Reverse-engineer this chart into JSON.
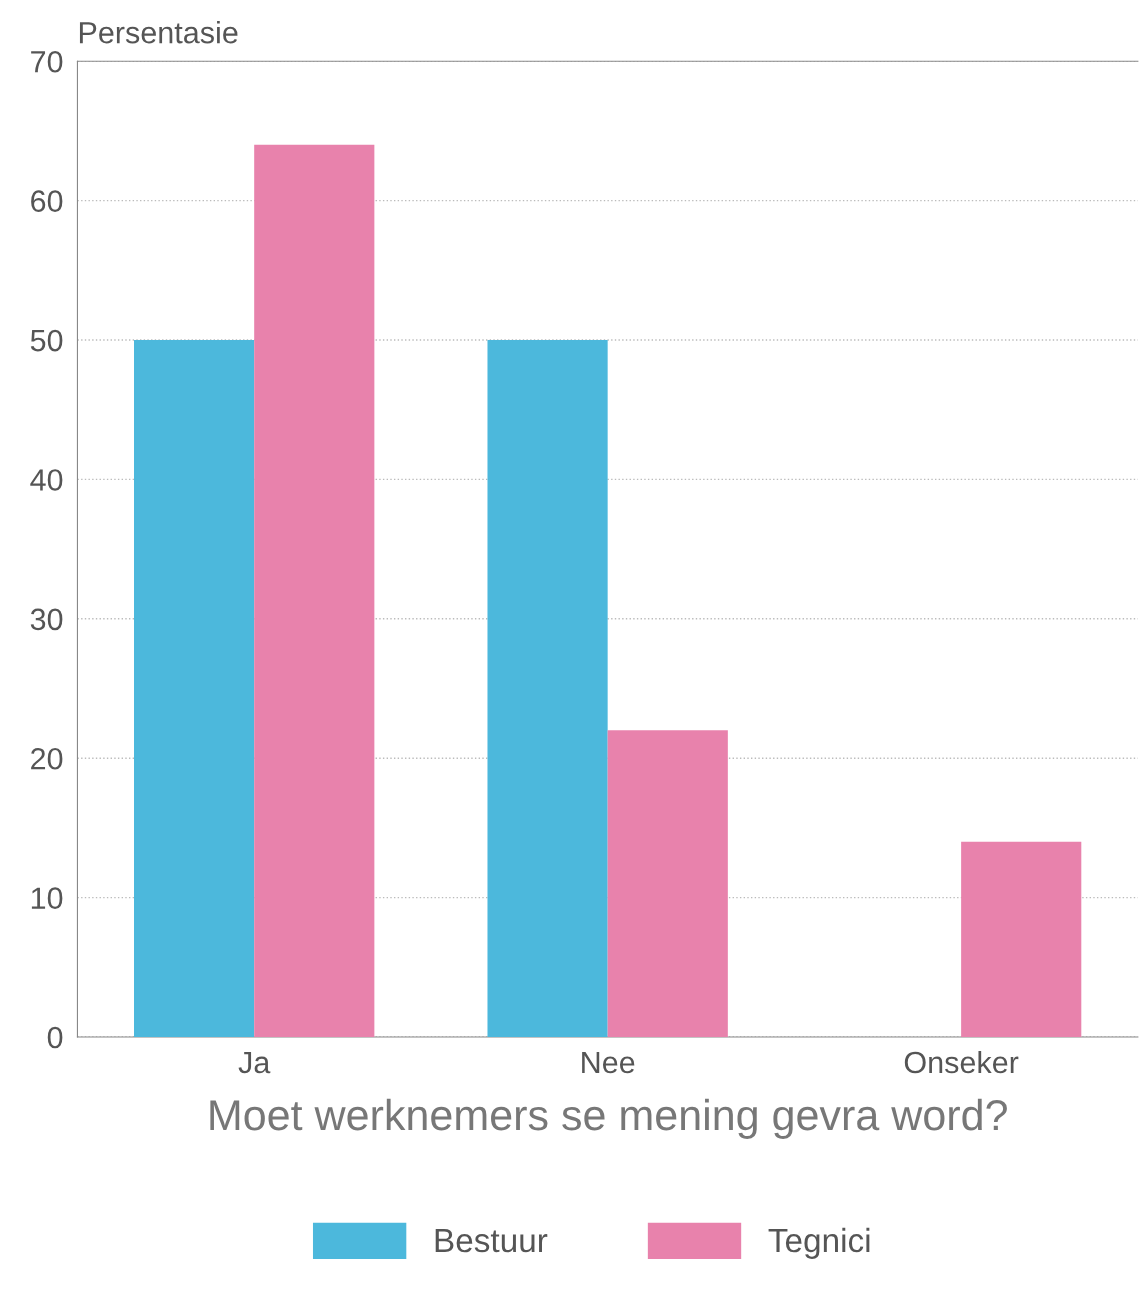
{
  "chart_data": {
    "type": "bar",
    "xlabel": "Moet werknemers se mening gevra word?",
    "ylabel": "Persentasie",
    "categories": [
      "Ja",
      "Nee",
      "Onseker"
    ],
    "series": [
      {
        "name": "Bestuur",
        "color": "#4cb8dc",
        "values": [
          50,
          50,
          0
        ]
      },
      {
        "name": "Tegnici",
        "color": "#e882ac",
        "values": [
          64,
          22,
          14
        ]
      }
    ],
    "ylim": [
      0,
      70
    ],
    "yticks": [
      0,
      10,
      20,
      30,
      40,
      50,
      60,
      70
    ],
    "grid": "y",
    "legend": "bottom"
  }
}
